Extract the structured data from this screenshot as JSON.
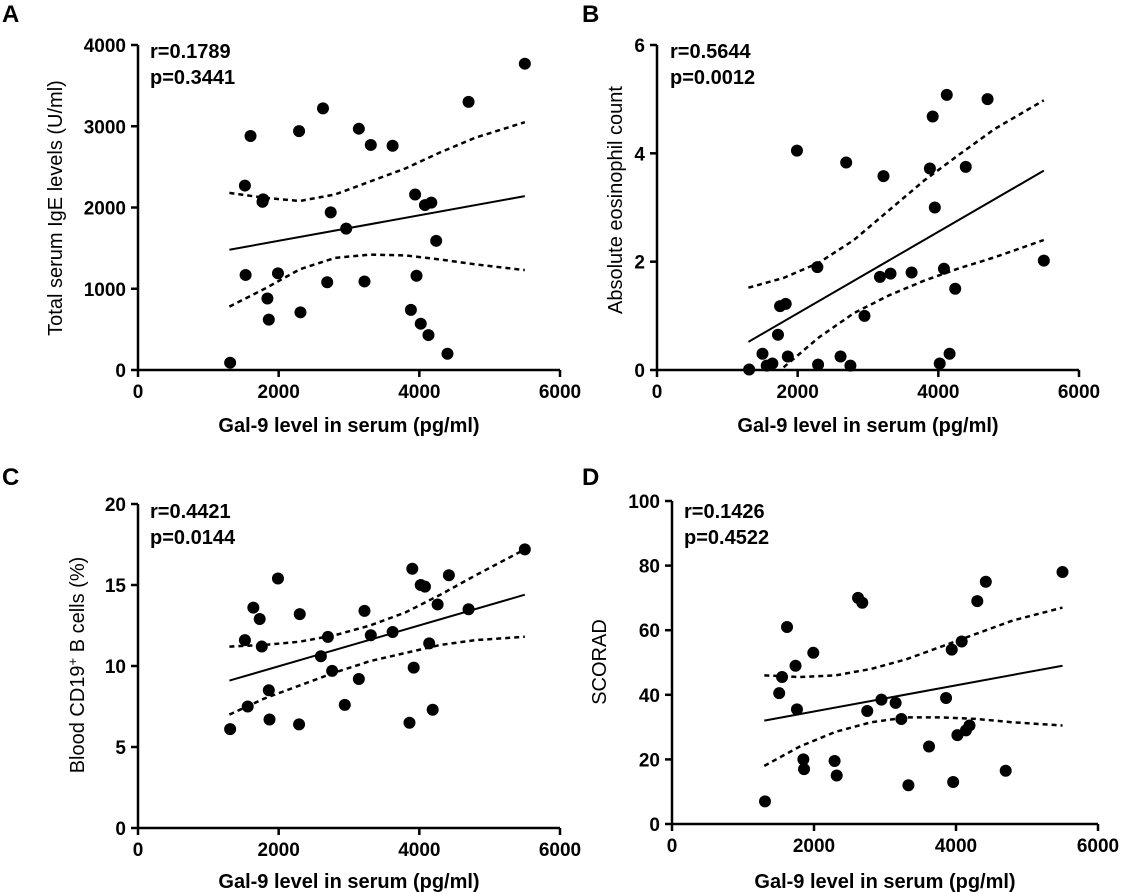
{
  "chart_data": [
    {
      "type": "scatter",
      "panel": "A",
      "title": "",
      "xlabel": "Gal-9 level in serum (pg/ml)",
      "ylabel": "Total serum IgE levels (U/ml)",
      "xlim": [
        0,
        6000
      ],
      "ylim": [
        0,
        4000
      ],
      "xticks": [
        0,
        2000,
        4000,
        6000
      ],
      "yticks": [
        0,
        1000,
        2000,
        3000,
        4000
      ],
      "r_text": "r=0.1789",
      "p_text": "p=0.3441",
      "points": [
        [
          1310,
          90
        ],
        [
          1520,
          2270
        ],
        [
          1530,
          1170
        ],
        [
          1600,
          2880
        ],
        [
          1770,
          2070
        ],
        [
          1780,
          2100
        ],
        [
          1840,
          880
        ],
        [
          1860,
          620
        ],
        [
          1990,
          1190
        ],
        [
          2290,
          2940
        ],
        [
          2310,
          710
        ],
        [
          2630,
          3220
        ],
        [
          2690,
          1080
        ],
        [
          2740,
          1940
        ],
        [
          2960,
          1740
        ],
        [
          3140,
          2970
        ],
        [
          3220,
          1090
        ],
        [
          3310,
          2770
        ],
        [
          3620,
          2760
        ],
        [
          3880,
          740
        ],
        [
          3940,
          2160
        ],
        [
          3960,
          1160
        ],
        [
          4020,
          570
        ],
        [
          4080,
          2030
        ],
        [
          4130,
          430
        ],
        [
          4170,
          2060
        ],
        [
          4240,
          1590
        ],
        [
          4400,
          200
        ],
        [
          4700,
          3300
        ],
        [
          5500,
          3770
        ]
      ],
      "fit": {
        "x": [
          1300,
          5500
        ],
        "y": [
          1480,
          2140
        ]
      },
      "ci_upper": [
        [
          1300,
          2180
        ],
        [
          1800,
          2120
        ],
        [
          2300,
          2080
        ],
        [
          2800,
          2160
        ],
        [
          3300,
          2320
        ],
        [
          3800,
          2480
        ],
        [
          4300,
          2680
        ],
        [
          4800,
          2860
        ],
        [
          5500,
          3050
        ]
      ],
      "ci_lower": [
        [
          1300,
          780
        ],
        [
          1800,
          1000
        ],
        [
          2300,
          1240
        ],
        [
          2800,
          1380
        ],
        [
          3300,
          1420
        ],
        [
          3800,
          1410
        ],
        [
          4300,
          1360
        ],
        [
          4800,
          1300
        ],
        [
          5500,
          1230
        ]
      ]
    },
    {
      "type": "scatter",
      "panel": "B",
      "title": "",
      "xlabel": "Gal-9 level in serum (pg/ml)",
      "ylabel": "Absolute eosinophil count",
      "xlim": [
        0,
        6000
      ],
      "ylim": [
        0,
        6
      ],
      "xticks": [
        0,
        2000,
        4000,
        6000
      ],
      "yticks": [
        0,
        2,
        4,
        6
      ],
      "r_text": "r=0.5644",
      "p_text": "p=0.0012",
      "points": [
        [
          1310,
          0.01
        ],
        [
          1500,
          0.3
        ],
        [
          1560,
          0.08
        ],
        [
          1640,
          0.12
        ],
        [
          1720,
          0.65
        ],
        [
          1750,
          1.18
        ],
        [
          1830,
          1.22
        ],
        [
          1860,
          0.25
        ],
        [
          1990,
          4.05
        ],
        [
          2280,
          1.9
        ],
        [
          2290,
          0.1
        ],
        [
          2610,
          0.25
        ],
        [
          2690,
          3.83
        ],
        [
          2750,
          0.08
        ],
        [
          2950,
          1.0
        ],
        [
          3170,
          1.72
        ],
        [
          3220,
          3.58
        ],
        [
          3320,
          1.78
        ],
        [
          3620,
          1.8
        ],
        [
          3880,
          3.72
        ],
        [
          3920,
          4.68
        ],
        [
          3950,
          3.0
        ],
        [
          4020,
          0.12
        ],
        [
          4080,
          1.87
        ],
        [
          4120,
          5.08
        ],
        [
          4160,
          0.3
        ],
        [
          4240,
          1.5
        ],
        [
          4390,
          3.75
        ],
        [
          4700,
          5.0
        ],
        [
          5500,
          2.02
        ]
      ],
      "fit": {
        "x": [
          1300,
          5500
        ],
        "y": [
          0.52,
          3.68
        ]
      },
      "ci_upper": [
        [
          1300,
          1.52
        ],
        [
          1800,
          1.7
        ],
        [
          2300,
          1.98
        ],
        [
          2800,
          2.4
        ],
        [
          3300,
          2.95
        ],
        [
          3800,
          3.5
        ],
        [
          4300,
          3.98
        ],
        [
          4800,
          4.45
        ],
        [
          5500,
          4.98
        ]
      ],
      "ci_lower": [
        [
          1800,
          0.05
        ],
        [
          2300,
          0.6
        ],
        [
          2800,
          1.05
        ],
        [
          3300,
          1.38
        ],
        [
          3800,
          1.65
        ],
        [
          4300,
          1.88
        ],
        [
          4800,
          2.08
        ],
        [
          5500,
          2.4
        ]
      ]
    },
    {
      "type": "scatter",
      "panel": "C",
      "title": "",
      "xlabel": "Gal-9 level in serum (pg/ml)",
      "ylabel": "Blood CD19+ B cells (%)",
      "ylabel_main": "Blood CD19",
      "ylabel_sup": "+",
      "ylabel_tail": " B cells (%)",
      "xlim": [
        0,
        6000
      ],
      "ylim": [
        0,
        20
      ],
      "xticks": [
        0,
        2000,
        4000,
        6000
      ],
      "yticks": [
        0,
        5,
        10,
        15,
        20
      ],
      "r_text": "r=0.4421",
      "p_text": "p=0.0144",
      "points": [
        [
          1310,
          6.1
        ],
        [
          1520,
          11.6
        ],
        [
          1560,
          7.5
        ],
        [
          1640,
          13.6
        ],
        [
          1730,
          12.9
        ],
        [
          1760,
          11.2
        ],
        [
          1860,
          8.5
        ],
        [
          1870,
          6.7
        ],
        [
          1990,
          15.4
        ],
        [
          2290,
          6.4
        ],
        [
          2300,
          13.2
        ],
        [
          2600,
          10.6
        ],
        [
          2700,
          11.8
        ],
        [
          2760,
          9.7
        ],
        [
          2940,
          7.6
        ],
        [
          3140,
          9.2
        ],
        [
          3220,
          13.4
        ],
        [
          3310,
          11.9
        ],
        [
          3620,
          12.1
        ],
        [
          3860,
          6.5
        ],
        [
          3900,
          16.0
        ],
        [
          3920,
          9.9
        ],
        [
          4020,
          15.0
        ],
        [
          4080,
          14.9
        ],
        [
          4140,
          11.4
        ],
        [
          4190,
          7.3
        ],
        [
          4260,
          13.8
        ],
        [
          4420,
          15.6
        ],
        [
          4700,
          13.5
        ],
        [
          5500,
          17.2
        ]
      ],
      "fit": {
        "x": [
          1300,
          5500
        ],
        "y": [
          9.1,
          14.4
        ]
      },
      "ci_upper": [
        [
          1300,
          11.2
        ],
        [
          1800,
          11.3
        ],
        [
          2300,
          11.5
        ],
        [
          2800,
          11.9
        ],
        [
          3300,
          12.5
        ],
        [
          3800,
          13.3
        ],
        [
          4300,
          14.4
        ],
        [
          4800,
          15.6
        ],
        [
          5500,
          17.2
        ]
      ],
      "ci_lower": [
        [
          1300,
          7.0
        ],
        [
          1800,
          8.0
        ],
        [
          2300,
          8.8
        ],
        [
          2800,
          9.6
        ],
        [
          3300,
          10.3
        ],
        [
          3800,
          10.8
        ],
        [
          4300,
          11.3
        ],
        [
          4800,
          11.6
        ],
        [
          5500,
          11.8
        ]
      ]
    },
    {
      "type": "scatter",
      "panel": "D",
      "title": "",
      "xlabel": "Gal-9 level in serum (pg/ml)",
      "ylabel": "SCORAD",
      "xlim": [
        0,
        6000
      ],
      "ylim": [
        0,
        100
      ],
      "xticks": [
        0,
        2000,
        4000,
        6000
      ],
      "yticks": [
        0,
        20,
        40,
        60,
        80,
        100
      ],
      "r_text": "r=0.1426",
      "p_text": "p=0.4522",
      "points": [
        [
          1310,
          7
        ],
        [
          1510,
          40.5
        ],
        [
          1550,
          45.5
        ],
        [
          1620,
          61
        ],
        [
          1740,
          49
        ],
        [
          1760,
          35.5
        ],
        [
          1850,
          20
        ],
        [
          1860,
          17
        ],
        [
          1990,
          53
        ],
        [
          2290,
          19.5
        ],
        [
          2320,
          15
        ],
        [
          2620,
          70
        ],
        [
          2680,
          68.5
        ],
        [
          2750,
          35
        ],
        [
          2950,
          38.5
        ],
        [
          3150,
          37.5
        ],
        [
          3230,
          32.5
        ],
        [
          3330,
          12
        ],
        [
          3620,
          24
        ],
        [
          3860,
          39
        ],
        [
          3940,
          54
        ],
        [
          3960,
          13
        ],
        [
          4020,
          27.5
        ],
        [
          4080,
          56.5
        ],
        [
          4140,
          29
        ],
        [
          4190,
          30.5
        ],
        [
          4300,
          69
        ],
        [
          4420,
          75
        ],
        [
          4700,
          16.5
        ],
        [
          5500,
          78
        ]
      ],
      "fit": {
        "x": [
          1300,
          5500
        ],
        "y": [
          32,
          49
        ]
      },
      "ci_upper": [
        [
          1300,
          46
        ],
        [
          1800,
          45.5
        ],
        [
          2300,
          46
        ],
        [
          2800,
          48
        ],
        [
          3300,
          51
        ],
        [
          3800,
          55
        ],
        [
          4300,
          59
        ],
        [
          4800,
          63
        ],
        [
          5500,
          67
        ]
      ],
      "ci_lower": [
        [
          1300,
          18
        ],
        [
          1800,
          24
        ],
        [
          2300,
          28.5
        ],
        [
          2800,
          31.5
        ],
        [
          3300,
          33
        ],
        [
          3800,
          33
        ],
        [
          4300,
          32.5
        ],
        [
          4800,
          31.5
        ],
        [
          5500,
          30.5
        ]
      ]
    }
  ]
}
